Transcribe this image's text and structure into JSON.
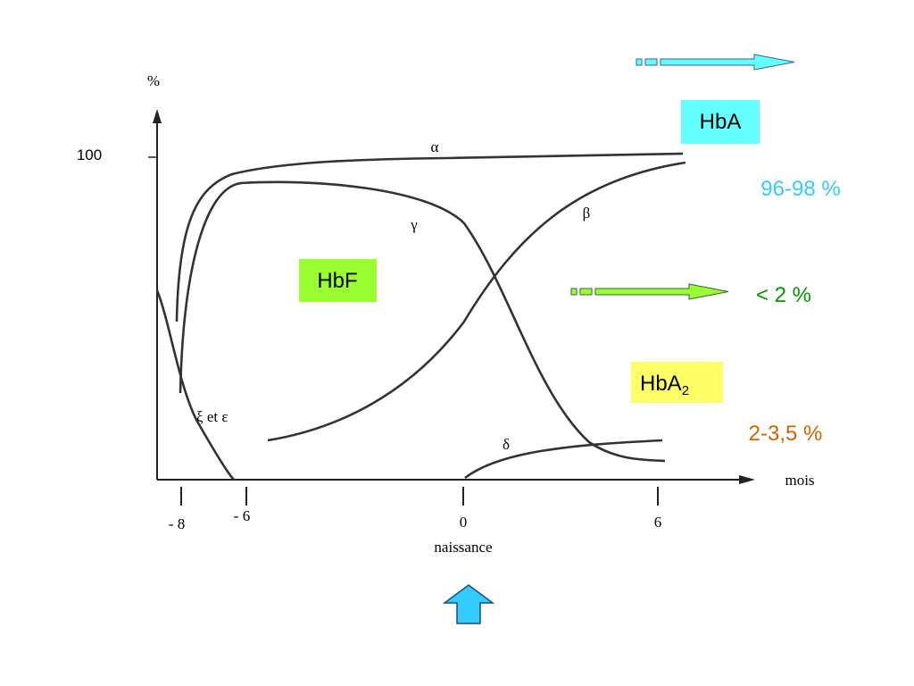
{
  "axis": {
    "y_unit": "%",
    "y_value": "100",
    "x_unit": "mois",
    "x_ticks": [
      "- 8",
      "- 6",
      "0",
      "6"
    ],
    "birth": "naissance"
  },
  "curves": {
    "alpha": "α",
    "gamma": "γ",
    "beta": "β",
    "xi_epsilon": "ξ et ε",
    "delta": "δ"
  },
  "labels": {
    "hba": "HbA",
    "hba_pct": "96-98 %",
    "hbf": "HbF",
    "hbf_pct": "< 2 %",
    "hba2": {
      "main": "HbA",
      "sub": "2"
    },
    "hba2_pct": "2-3,5 %"
  }
}
